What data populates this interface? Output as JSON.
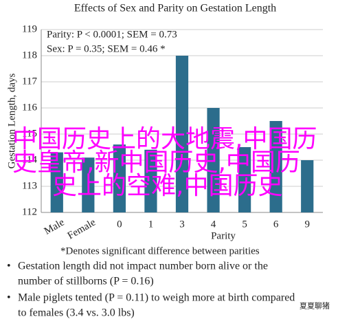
{
  "chart_data": {
    "type": "bar",
    "title": "Effects of Sex and Parity on Gestation Length",
    "y_label": "Gestation Length, days",
    "x_label": "Parity",
    "categories": [
      "Male",
      "Female",
      "0",
      "1",
      "3",
      "4",
      "5",
      "6",
      "9"
    ],
    "values": [
      114.3,
      114.1,
      114.6,
      114.4,
      118,
      116,
      114.5,
      115.5,
      114
    ],
    "color": "#2c6d8c",
    "ylim": [
      112,
      119
    ],
    "yticks": [
      112,
      113,
      114,
      115,
      116,
      117,
      118,
      119
    ],
    "grid": true,
    "annotations": [
      "Parity: P < 0.0001; SEM = 0.73",
      "Sex: P = 0.35; SEM = 0.46 *"
    ],
    "footnote": "*Denotes significant difference between parities"
  },
  "bullets": [
    [
      "Gestation length did not impact number born alive or the",
      "number of stillborns (P = 0.16)"
    ],
    [
      "Male piglets tented (P = 0.11) to weigh more at birth compared",
      "to females (3.4 vs. 3.0 lbs)"
    ]
  ],
  "overlay": [
    "中国历史上的大地震,中国历",
    "史皇帝,新中国历史,中国历",
    "史上的空难,中国历史"
  ],
  "watermark": "夏夏聊猪"
}
